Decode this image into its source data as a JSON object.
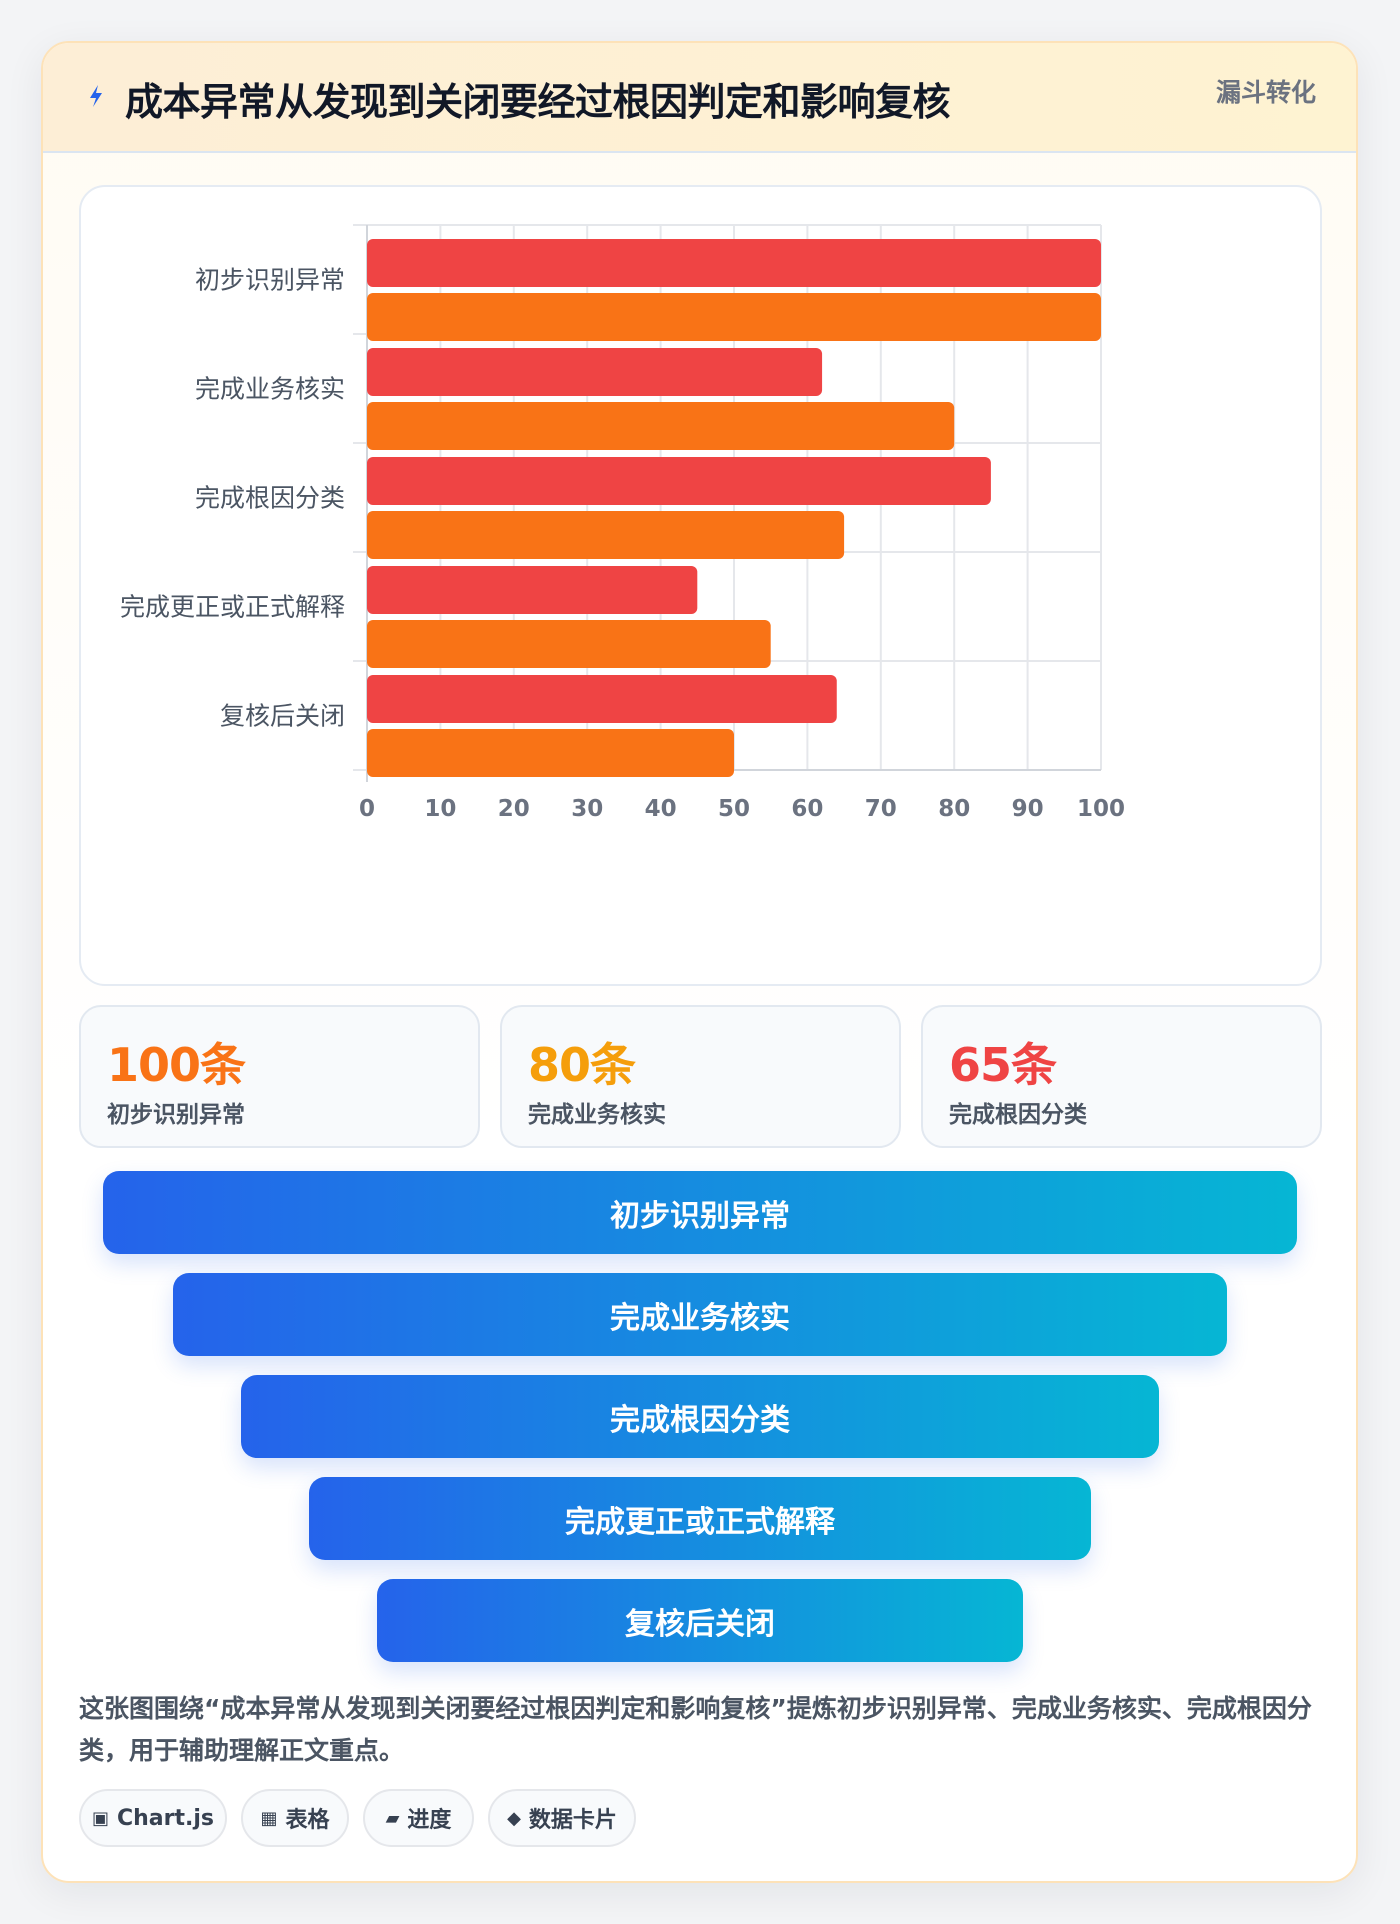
{
  "header": {
    "title": "成本异常从发现到关闭要经过根因判定和影响复核",
    "tag": "漏斗转化",
    "icon": "lightning-icon"
  },
  "chart_data": {
    "type": "bar",
    "orientation": "horizontal",
    "categories": [
      "初步识别异常",
      "完成业务核实",
      "完成根因分类",
      "完成更正或正式解释",
      "复核后关闭"
    ],
    "series": [
      {
        "values": [
          100,
          62,
          85,
          45,
          64
        ],
        "color": "#ef4444"
      },
      {
        "values": [
          100,
          80,
          65,
          55,
          50
        ],
        "color": "#f97316"
      }
    ],
    "xlim": [
      0,
      100
    ],
    "xticks": [
      0,
      10,
      20,
      30,
      40,
      50,
      60,
      70,
      80,
      90,
      100
    ],
    "grid": true,
    "legend": "none"
  },
  "stats": [
    {
      "value": "100条",
      "label": "初步识别异常",
      "color": "#f97316"
    },
    {
      "value": "80条",
      "label": "完成业务核实",
      "color": "#f59e0b"
    },
    {
      "value": "65条",
      "label": "完成根因分类",
      "color": "#ef4444"
    }
  ],
  "funnel": [
    {
      "label": "初步识别异常"
    },
    {
      "label": "完成业务核实"
    },
    {
      "label": "完成根因分类"
    },
    {
      "label": "完成更正或正式解释"
    },
    {
      "label": "复核后关闭"
    }
  ],
  "summary": "这张图围绕“成本异常从发现到关闭要经过根因判定和影响复核”提炼初步识别异常、完成业务核实、完成根因分类，用于辅助理解正文重点。",
  "chips": [
    {
      "icon": "▣",
      "icon_name": "chart-icon",
      "label": "Chart.js"
    },
    {
      "icon": "▦",
      "icon_name": "table-icon",
      "label": "表格"
    },
    {
      "icon": "▰",
      "icon_name": "progress-icon",
      "label": "进度"
    },
    {
      "icon": "◆",
      "icon_name": "card-icon",
      "label": "数据卡片"
    }
  ]
}
